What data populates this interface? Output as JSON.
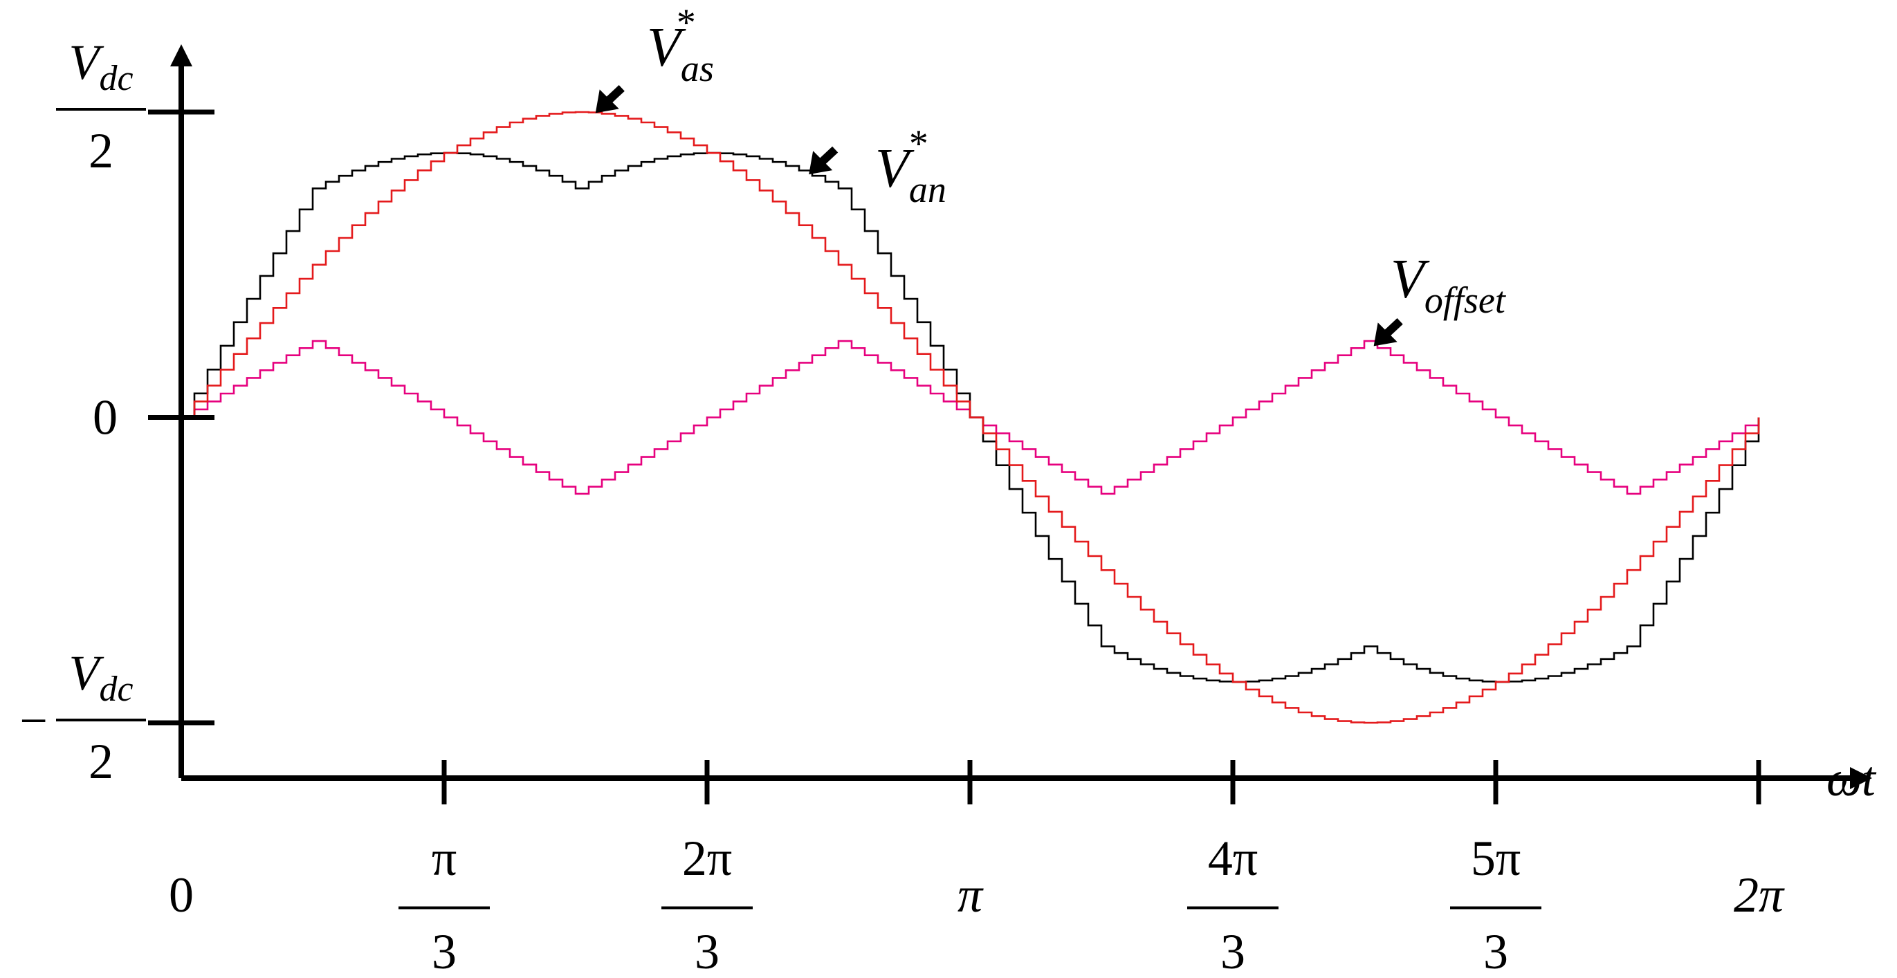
{
  "chart_data": {
    "type": "line",
    "x_range": [
      0,
      6.2832
    ],
    "y_range": [
      -0.5,
      0.5
    ],
    "y_ticks": [
      {
        "value": 0.5,
        "sign": "",
        "num": "V",
        "num_sub": "dc",
        "den": "2"
      },
      {
        "value": 0,
        "text": "0"
      },
      {
        "value": -0.5,
        "sign": "−",
        "num": "V",
        "num_sub": "dc",
        "den": "2"
      }
    ],
    "x_ticks": [
      {
        "value": 0,
        "text": "0"
      },
      {
        "value": 1.0472,
        "num": "π",
        "den": "3"
      },
      {
        "value": 2.0944,
        "num": "2π",
        "den": "3"
      },
      {
        "value": 3.1416,
        "text": "π"
      },
      {
        "value": 4.1888,
        "num": "4π",
        "den": "3"
      },
      {
        "value": 5.236,
        "num": "5π",
        "den": "3"
      },
      {
        "value": 6.2832,
        "text": "2π"
      }
    ],
    "xlabel": "ωt",
    "steps_per_period": 120,
    "series": [
      {
        "id": "vas",
        "label_main": "V",
        "label_sub": "as",
        "label_sup": "*",
        "color": "#e41a1c",
        "formula": "0.5*sin(x)"
      },
      {
        "id": "van",
        "label_main": "V",
        "label_sub": "an",
        "label_sup": "*",
        "color": "#000000",
        "formula": "0.5*sin(x) + offset(x)"
      },
      {
        "id": "voffset",
        "label_main": "V",
        "label_sub": "offset",
        "label_sup": "",
        "color": "#e6007e",
        "formula": "-(max(a,b,c)+min(a,b,c))/2"
      }
    ],
    "annotations": [
      {
        "series": "vas",
        "x": 1.65
      },
      {
        "series": "van",
        "x": 2.5
      },
      {
        "series": "voffset",
        "x": 4.75
      }
    ]
  }
}
